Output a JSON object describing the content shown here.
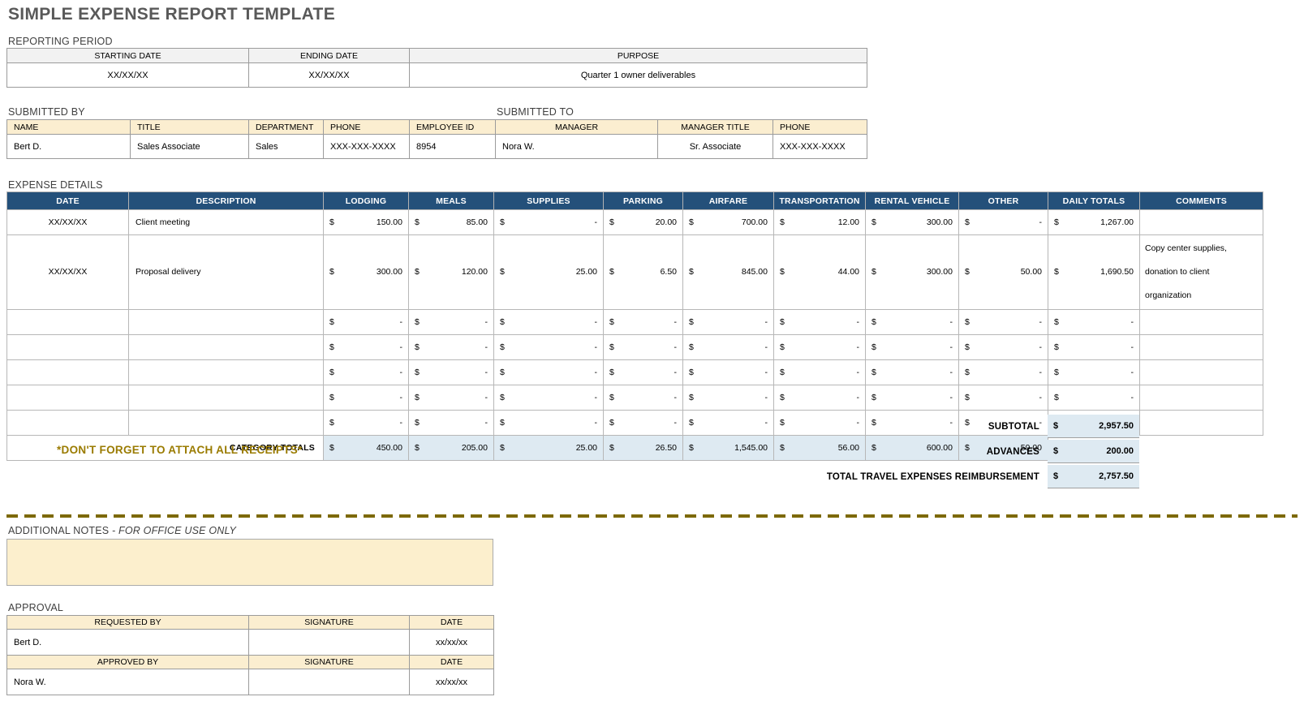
{
  "currency_symbol": "$",
  "page": {
    "title": "SIMPLE EXPENSE REPORT TEMPLATE"
  },
  "colors": {
    "header_blue": "#24507A",
    "light_blue": "#DEEAF2",
    "tan": "#FBEED0",
    "gold": "#9A7B00",
    "title_gray": "#595959"
  },
  "reporting_period": {
    "label": "REPORTING PERIOD",
    "headers": [
      "STARTING DATE",
      "ENDING DATE",
      "PURPOSE"
    ],
    "starting_date": "XX/XX/XX",
    "ending_date": "XX/XX/XX",
    "purpose": "Quarter 1 owner deliverables"
  },
  "submitted": {
    "by_label": "SUBMITTED BY",
    "to_label": "SUBMITTED TO",
    "headers": [
      "NAME",
      "TITLE",
      "DEPARTMENT",
      "PHONE",
      "EMPLOYEE ID",
      "MANAGER",
      "MANAGER TITLE",
      "PHONE"
    ],
    "values": [
      "Bert D.",
      "Sales Associate",
      "Sales",
      "XXX-XXX-XXXX",
      "8954",
      "Nora W.",
      "Sr. Associate",
      "XXX-XXX-XXXX"
    ]
  },
  "expense_details": {
    "label": "EXPENSE DETAILS",
    "headers": [
      "DATE",
      "DESCRIPTION",
      "LODGING",
      "MEALS",
      "SUPPLIES",
      "PARKING",
      "AIRFARE",
      "TRANSPORTATION",
      "RENTAL VEHICLE",
      "OTHER",
      "DAILY TOTALS",
      "COMMENTS"
    ],
    "rows": [
      {
        "date": "XX/XX/XX",
        "description": "Client meeting",
        "amounts": [
          "150.00",
          "85.00",
          "-",
          "20.00",
          "700.00",
          "12.00",
          "300.00",
          "-"
        ],
        "daily_total": "1,267.00",
        "comment": ""
      },
      {
        "date": "XX/XX/XX",
        "description": "Proposal delivery",
        "amounts": [
          "300.00",
          "120.00",
          "25.00",
          "6.50",
          "845.00",
          "44.00",
          "300.00",
          "50.00"
        ],
        "daily_total": "1,690.50",
        "comment": "Copy center supplies, donation to client organization"
      },
      {
        "date": "",
        "description": "",
        "amounts": [
          "-",
          "-",
          "-",
          "-",
          "-",
          "-",
          "-",
          "-"
        ],
        "daily_total": "-",
        "comment": ""
      },
      {
        "date": "",
        "description": "",
        "amounts": [
          "-",
          "-",
          "-",
          "-",
          "-",
          "-",
          "-",
          "-"
        ],
        "daily_total": "-",
        "comment": ""
      },
      {
        "date": "",
        "description": "",
        "amounts": [
          "-",
          "-",
          "-",
          "-",
          "-",
          "-",
          "-",
          "-"
        ],
        "daily_total": "-",
        "comment": ""
      },
      {
        "date": "",
        "description": "",
        "amounts": [
          "-",
          "-",
          "-",
          "-",
          "-",
          "-",
          "-",
          "-"
        ],
        "daily_total": "-",
        "comment": ""
      },
      {
        "date": "",
        "description": "",
        "amounts": [
          "-",
          "-",
          "-",
          "-",
          "-",
          "-",
          "-",
          "-"
        ],
        "daily_total": "-",
        "comment": ""
      }
    ],
    "category_totals_label": "CATEGORY TOTALS",
    "category_totals": [
      "450.00",
      "205.00",
      "25.00",
      "26.50",
      "1,545.00",
      "56.00",
      "600.00",
      "50.00"
    ]
  },
  "summary": {
    "rows": [
      {
        "label": "SUBTOTAL",
        "value": "2,957.50"
      },
      {
        "label": "ADVANCES",
        "value": "200.00"
      },
      {
        "label": "TOTAL TRAVEL EXPENSES REIMBURSEMENT",
        "value": "2,757.50"
      }
    ]
  },
  "receipts_note": "*DON'T FORGET TO ATTACH ALL RECEIPTS*",
  "additional_notes": {
    "label": "ADDITIONAL NOTES ",
    "label_suffix": "- FOR OFFICE USE ONLY",
    "content": ""
  },
  "approval": {
    "label": "APPROVAL",
    "requested": {
      "headers": [
        "REQUESTED BY",
        "SIGNATURE",
        "DATE"
      ],
      "name": "Bert D.",
      "signature": "",
      "date": "xx/xx/xx"
    },
    "approved": {
      "headers": [
        "APPROVED BY",
        "SIGNATURE",
        "DATE"
      ],
      "name": "Nora W.",
      "signature": "",
      "date": "xx/xx/xx"
    }
  }
}
